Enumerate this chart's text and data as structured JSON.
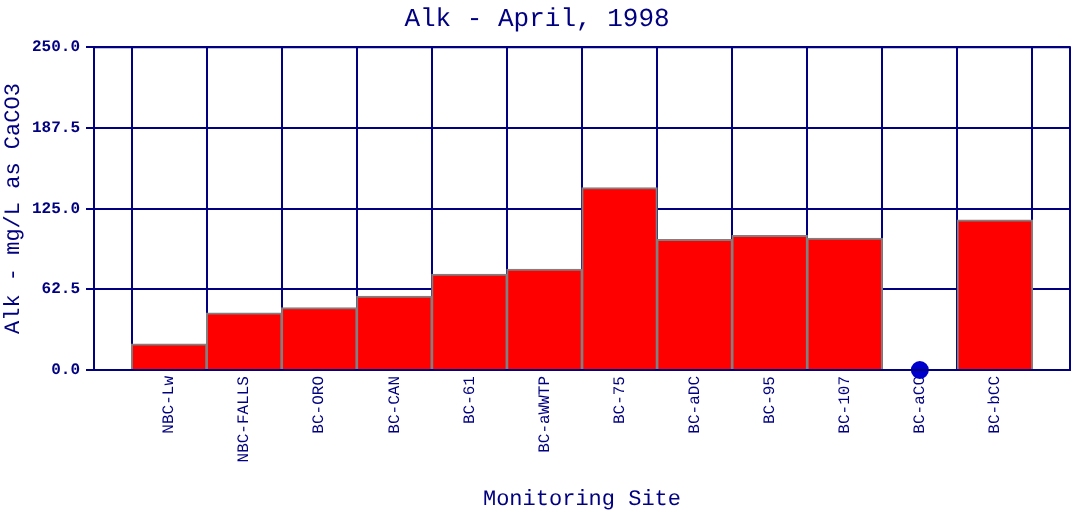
{
  "chart_data": {
    "type": "bar",
    "title": "Alk - April, 1998",
    "xlabel": "Monitoring Site",
    "ylabel": "Alk - mg/L as CaCO3",
    "categories": [
      "NBC-Lw",
      "NBC-FALLS",
      "BC-ORO",
      "BC-CAN",
      "BC-61",
      "BC-aWWTP",
      "BC-75",
      "BC-aDC",
      "BC-95",
      "BC-107",
      "BC-aCC",
      "BC-bCC"
    ],
    "series": [
      {
        "color": "#ff0000",
        "values": [
          20,
          44,
          48,
          57,
          74,
          78,
          141,
          101,
          104,
          102,
          null,
          116
        ]
      },
      {
        "type": "scatter",
        "color": "#0000cc",
        "x": [
          "BC-aCC"
        ],
        "values": [
          0
        ],
        "marker": "circle"
      }
    ],
    "ylim": [
      0,
      250
    ],
    "yticks": [
      {
        "value": 0,
        "label": "0.0"
      },
      {
        "value": 62.5,
        "label": "62.5"
      },
      {
        "value": 125,
        "label": "125.0"
      },
      {
        "value": 187.5,
        "label": "187.5"
      },
      {
        "value": 250,
        "label": "250.0"
      }
    ],
    "grid": true
  }
}
